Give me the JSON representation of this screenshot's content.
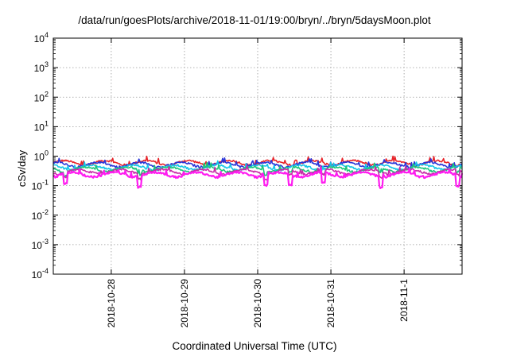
{
  "chart_data": {
    "type": "line",
    "title": "/data/run/goesPlots/archive/2018-11-01/19:00/bryn/../bryn/5daysMoon.plot",
    "xlabel": "Coordinated Universal Time (UTC)",
    "ylabel": "cSv/day",
    "yscale": "log",
    "ylim": [
      0.0001,
      10000
    ],
    "yticks": [
      {
        "base": "10",
        "exp": "4"
      },
      {
        "base": "10",
        "exp": "3"
      },
      {
        "base": "10",
        "exp": "2"
      },
      {
        "base": "10",
        "exp": "1"
      },
      {
        "base": "10",
        "exp": "0"
      },
      {
        "base": "10",
        "exp": "-1"
      },
      {
        "base": "10",
        "exp": "-2"
      },
      {
        "base": "10",
        "exp": "-3"
      },
      {
        "base": "10",
        "exp": "-4"
      }
    ],
    "xlim": [
      "2018-10-27T05:00",
      "2018-11-01T19:00"
    ],
    "xticks": [
      "2018-10-28",
      "2018-10-29",
      "2018-10-30",
      "2018-10-31",
      "2018-11-1"
    ],
    "grid": true,
    "series": [
      {
        "color": "#e8242a",
        "level": 0.6
      },
      {
        "color": "#2a35d8",
        "level": 0.52
      },
      {
        "color": "#16c6e8",
        "level": 0.42
      },
      {
        "color": "#1cc67a",
        "level": 0.36
      },
      {
        "color": "#c82aa8",
        "level": 0.3
      },
      {
        "color": "#ff1cf0",
        "level": 0.24
      }
    ]
  }
}
